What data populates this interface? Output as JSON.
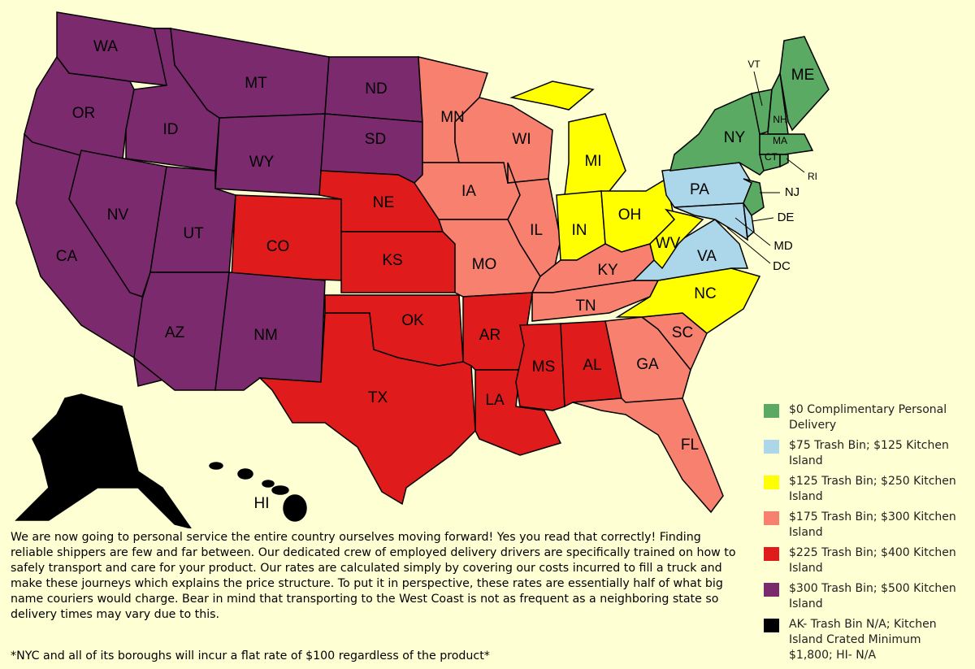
{
  "regions": [
    {
      "label": "WA",
      "color": "#7b2a6e"
    },
    {
      "label": "OR",
      "color": "#7b2a6e"
    },
    {
      "label": "CA",
      "color": "#7b2a6e"
    },
    {
      "label": "NV",
      "color": "#7b2a6e"
    },
    {
      "label": "ID",
      "color": "#7b2a6e"
    },
    {
      "label": "MT",
      "color": "#7b2a6e"
    },
    {
      "label": "WY",
      "color": "#7b2a6e"
    },
    {
      "label": "UT",
      "color": "#7b2a6e"
    },
    {
      "label": "AZ",
      "color": "#7b2a6e"
    },
    {
      "label": "CO",
      "color": "#e01b1b"
    },
    {
      "label": "NM",
      "color": "#7b2a6e"
    },
    {
      "label": "ND",
      "color": "#7b2a6e"
    },
    {
      "label": "SD",
      "color": "#7b2a6e"
    },
    {
      "label": "NE",
      "color": "#e01b1b"
    },
    {
      "label": "KS",
      "color": "#e01b1b"
    },
    {
      "label": "OK",
      "color": "#e01b1b"
    },
    {
      "label": "TX",
      "color": "#e01b1b"
    },
    {
      "label": "MN",
      "color": "#f8806f"
    },
    {
      "label": "IA",
      "color": "#f8806f"
    },
    {
      "label": "MO",
      "color": "#f8806f"
    },
    {
      "label": "AR",
      "color": "#e01b1b"
    },
    {
      "label": "LA",
      "color": "#e01b1b"
    },
    {
      "label": "WI",
      "color": "#f8806f"
    },
    {
      "label": "IL",
      "color": "#f8806f"
    },
    {
      "label": "MI",
      "color": "#ffff00"
    },
    {
      "label": "IN",
      "color": "#ffff00"
    },
    {
      "label": "OH",
      "color": "#ffff00"
    },
    {
      "label": "KY",
      "color": "#f8806f"
    },
    {
      "label": "TN",
      "color": "#f8806f"
    },
    {
      "label": "MS",
      "color": "#e01b1b"
    },
    {
      "label": "AL",
      "color": "#e01b1b"
    },
    {
      "label": "GA",
      "color": "#f8806f"
    },
    {
      "label": "FL",
      "color": "#f8806f"
    },
    {
      "label": "SC",
      "color": "#f8806f"
    },
    {
      "label": "NC",
      "color": "#ffff00"
    },
    {
      "label": "VA",
      "color": "#acd7ea"
    },
    {
      "label": "WV",
      "color": "#ffff00"
    },
    {
      "label": "PA",
      "color": "#acd7ea"
    },
    {
      "label": "NY",
      "color": "#5aaa63"
    },
    {
      "label": "NJ",
      "color": "#5aaa63"
    },
    {
      "label": "DE",
      "color": "#acd7ea"
    },
    {
      "label": "MD",
      "color": "#acd7ea"
    },
    {
      "label": "DC"
    },
    {
      "label": "VT",
      "color": "#5aaa63"
    },
    {
      "label": "NH",
      "color": "#5aaa63"
    },
    {
      "label": "ME",
      "color": "#5aaa63"
    },
    {
      "label": "MA",
      "color": "#5aaa63"
    },
    {
      "label": "CT",
      "color": "#5aaa63"
    },
    {
      "label": "RI",
      "color": "#5aaa63"
    },
    {
      "color": "#000000"
    },
    {
      "label": "HI",
      "color": "#000000"
    }
  ],
  "legend": [
    {
      "text": "$0 Complimentary Personal Delivery",
      "color": "#5aaa63"
    },
    {
      "text": "$75 Trash Bin; $125 Kitchen Island",
      "color": "#acd7ea"
    },
    {
      "text": "$125 Trash Bin; $250 Kitchen Island",
      "color": "#ffff00"
    },
    {
      "text": "$175 Trash Bin; $300 Kitchen Island",
      "color": "#f8806f"
    },
    {
      "text": "$225 Trash Bin; $400 Kitchen Island",
      "color": "#e01b1b"
    },
    {
      "text": "$300 Trash Bin; $500 Kitchen Island",
      "color": "#7b2a6e"
    },
    {
      "text": "AK- Trash Bin N/A; Kitchen Island Crated Minimum $1,800; HI- N/A",
      "color": "#000000"
    }
  ],
  "description": "We are now going to personal service the entire country ourselves moving forward! Yes you read that correctly! Finding reliable shippers are few and far between. Our dedicated crew of employed delivery drivers are specifically trained on how to safely transport and care for your product. Our rates are calculated simply by covering our costs incurred to fill a truck and make these journeys which explains the price structure. To put it in perspective, these rates are essentially half of what big name couriers would charge. Bear in mind that transporting to the West Coast is not as frequent as a neighboring state so delivery times may vary due to this.",
  "footnote": "*NYC and all of its boroughs will incur a flat rate of $100 regardless of the product*"
}
